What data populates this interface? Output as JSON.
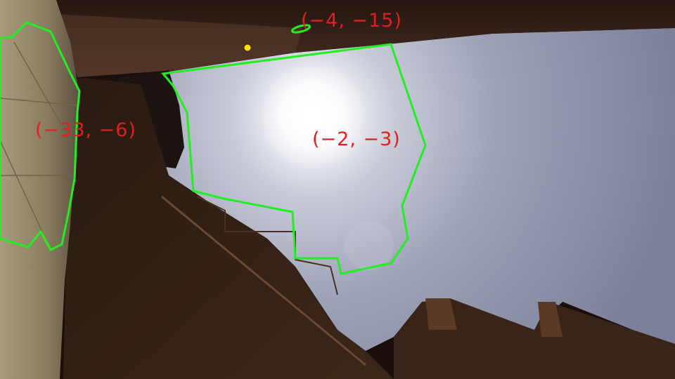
{
  "annotations": [
    {
      "id": "region-left-wall",
      "label": "(−33, −6)"
    },
    {
      "id": "region-sky",
      "label": "(−2, −3)"
    },
    {
      "id": "region-small",
      "label": "(−4, −15)"
    }
  ],
  "colors": {
    "outline": "#22ee22",
    "label_text": "#e02020",
    "marker": "#ffe100",
    "sky": "#b9bdd0",
    "wall": "#8a7a5c",
    "roof": "#3a2418",
    "shadow": "#1a0f0c"
  }
}
